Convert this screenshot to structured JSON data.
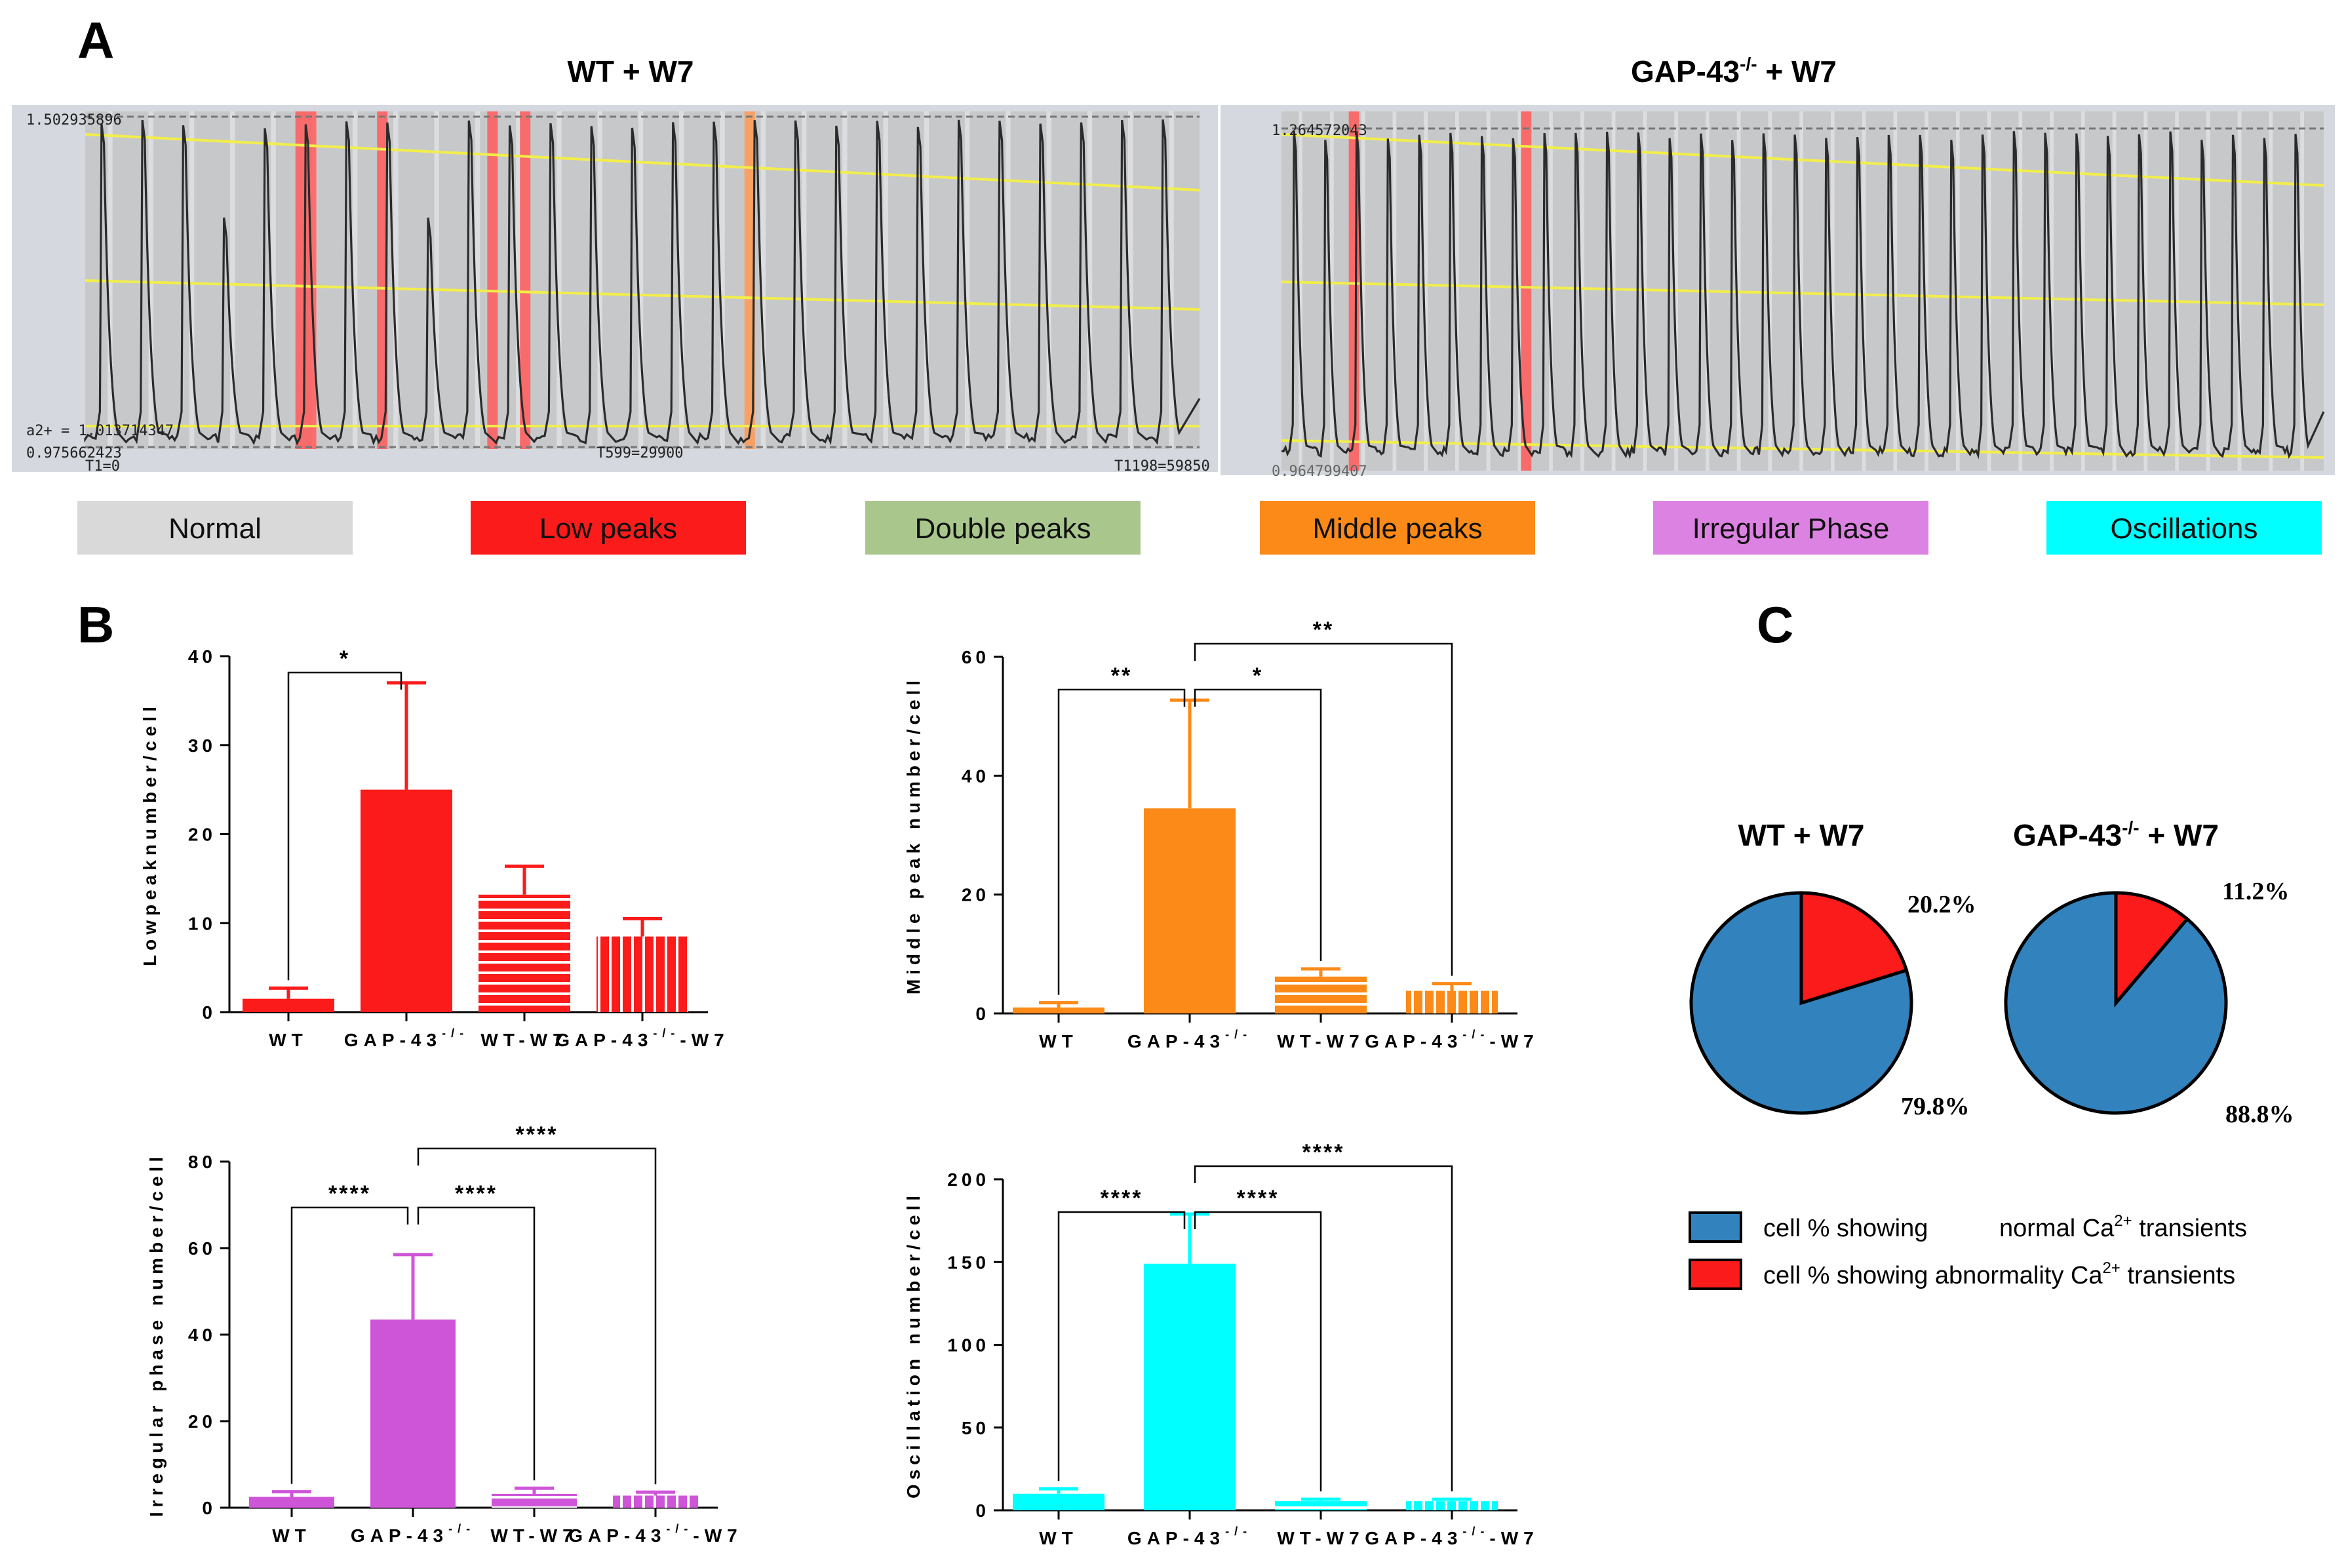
{
  "panel_labels": {
    "a": "A",
    "b": "B",
    "c": "C"
  },
  "traces": [
    {
      "title": "WT + W7",
      "title_sup": "",
      "title_suffix": "",
      "label_top": "1.502935896",
      "label_mid": "a2+ = 1.013714347",
      "label_bottom": "0.975662423",
      "label_t1": "T1=0",
      "label_t2": "T599=29900",
      "label_t3": "T1198=59850",
      "peaks": 27,
      "markers": [
        {
          "peak": 5,
          "color": "#ff5a5a"
        },
        {
          "peak": 7,
          "color": "#ff5a5a"
        },
        {
          "peak": 9.7,
          "color": "#ff5a5a"
        },
        {
          "peak": 10.5,
          "color": "#ff5a5a"
        },
        {
          "peak": 16,
          "color": "#ff9a55"
        }
      ]
    },
    {
      "title": "GAP-43",
      "title_sup": "-/-",
      "title_suffix": " + W7",
      "label_top": "1.264572043",
      "label_mid": "",
      "label_bottom": "0.964799407",
      "label_t1": "",
      "label_t2": "",
      "label_t3": "",
      "peaks": 33,
      "markers": [
        {
          "peak": 2,
          "color": "#ff5a5a"
        },
        {
          "peak": 7.5,
          "color": "#ff5a5a"
        }
      ]
    }
  ],
  "category_legend": [
    {
      "label": "Normal",
      "color": "#d9d9d9"
    },
    {
      "label": "Low peaks",
      "color": "#fb1b1b"
    },
    {
      "label": "Double peaks",
      "color": "#a9c68d"
    },
    {
      "label": "Middle peaks",
      "color": "#fb8a18"
    },
    {
      "label": "Irregular Phase",
      "color": "#dc82e2"
    },
    {
      "label": "Oscillations",
      "color": "#00ffff"
    }
  ],
  "chart_data": [
    {
      "type": "bar",
      "ylabel": "Lowpeaknumber/cell",
      "categories": [
        "WT",
        "GAP-43",
        "WT-W7",
        "GAP-43-W7"
      ],
      "category_sup": [
        "",
        "-/-",
        "",
        "-/-"
      ],
      "values": [
        1.5,
        25,
        13.2,
        8.5
      ],
      "errors": [
        1.2,
        12,
        3.2,
        2
      ],
      "patterns": [
        "solid",
        "solid",
        "hlines",
        "vlines"
      ],
      "color": "#fb1b1b",
      "ylim": [
        0,
        40
      ],
      "ticks": [
        0,
        10,
        20,
        30,
        40
      ],
      "significance": [
        {
          "from": 0,
          "to": 1,
          "label": "*"
        }
      ]
    },
    {
      "type": "bar",
      "ylabel": "Middle peak number/cell",
      "categories": [
        "WT",
        "GAP-43",
        "WT-W7",
        "GAP-43-W7"
      ],
      "category_sup": [
        "",
        "-/-",
        "",
        "-/-"
      ],
      "values": [
        1,
        34.5,
        6.2,
        3.8
      ],
      "errors": [
        0.8,
        18.2,
        1.3,
        1.2
      ],
      "patterns": [
        "solid",
        "solid",
        "hlines",
        "vlines"
      ],
      "color": "#fb8a18",
      "ylim": [
        0,
        60
      ],
      "ticks": [
        0,
        20,
        40,
        60
      ],
      "significance": [
        {
          "from": 0,
          "to": 1,
          "label": "**"
        },
        {
          "from": 1,
          "to": 2,
          "label": "*"
        },
        {
          "from": 1,
          "to": 3,
          "label": "**"
        }
      ]
    },
    {
      "type": "bar",
      "ylabel": "Irregular phase number/cell",
      "categories": [
        "WT",
        "GAP-43",
        "WT-W7",
        "GAP-43-W7"
      ],
      "category_sup": [
        "",
        "-/-",
        "",
        "-/-"
      ],
      "values": [
        2.5,
        43.5,
        3.2,
        2.8
      ],
      "errors": [
        1.2,
        15,
        1.3,
        0.8
      ],
      "patterns": [
        "solid",
        "solid",
        "hlines",
        "vlines"
      ],
      "color": "#cf55d8",
      "ylim": [
        0,
        80
      ],
      "ticks": [
        0,
        20,
        40,
        60,
        80
      ],
      "significance": [
        {
          "from": 0,
          "to": 1,
          "label": "****"
        },
        {
          "from": 1,
          "to": 2,
          "label": "****"
        },
        {
          "from": 1,
          "to": 3,
          "label": "****"
        }
      ]
    },
    {
      "type": "bar",
      "ylabel": "Oscillation number/cell",
      "categories": [
        "WT",
        "GAP-43",
        "WT-W7",
        "GAP-43-W7"
      ],
      "category_sup": [
        "",
        "-/-",
        "",
        "-/-"
      ],
      "values": [
        10,
        149,
        5.5,
        5.5
      ],
      "errors": [
        3,
        30,
        1.2,
        1.2
      ],
      "patterns": [
        "solid",
        "solid",
        "hlines",
        "vlines"
      ],
      "color": "#00ffff",
      "ylim": [
        0,
        200
      ],
      "ticks": [
        0,
        50,
        100,
        150,
        200
      ],
      "significance": [
        {
          "from": 0,
          "to": 1,
          "label": "****"
        },
        {
          "from": 1,
          "to": 2,
          "label": "****"
        },
        {
          "from": 1,
          "to": 3,
          "label": "****"
        }
      ]
    },
    {
      "type": "pie",
      "title": "WT + W7",
      "title_sup": "",
      "title_suffix": "",
      "slices": [
        {
          "label": "normal",
          "value": 79.8,
          "display": "79.8%",
          "color": "#3182bd"
        },
        {
          "label": "abnormal",
          "value": 20.2,
          "display": "20.2%",
          "color": "#fb1b1b"
        }
      ]
    },
    {
      "type": "pie",
      "title": "GAP-43",
      "title_sup": "-/-",
      "title_suffix": " + W7",
      "slices": [
        {
          "label": "normal",
          "value": 88.8,
          "display": "88.8%",
          "color": "#3182bd"
        },
        {
          "label": "abnormal",
          "value": 11.2,
          "display": "11.2%",
          "color": "#fb1b1b"
        }
      ]
    }
  ],
  "pie_legend": [
    {
      "text_a": "cell % showing",
      "text_b": "normal Ca",
      "sup": "2+",
      "text_c": " transients",
      "color": "#3182bd"
    },
    {
      "text_a": "cell % showing abnormality Ca",
      "text_b": "",
      "sup": "2+",
      "text_c": " transients",
      "color": "#fb1b1b"
    }
  ]
}
